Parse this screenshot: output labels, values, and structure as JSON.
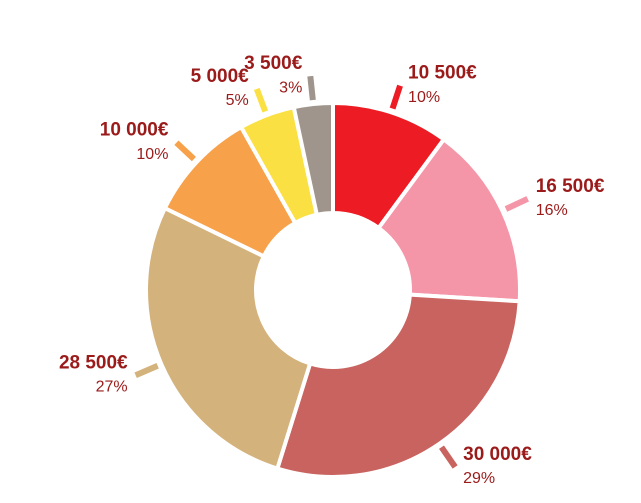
{
  "chart_data": {
    "type": "donut",
    "categories": [
      null,
      null,
      null,
      null,
      null,
      null,
      null
    ],
    "values": [
      10500,
      16500,
      30000,
      28500,
      10000,
      5000,
      3500
    ],
    "value_labels": [
      "10 500€",
      "16 500€",
      "30 000€",
      "28 500€",
      "10 000€",
      "5 000€",
      "3 500€"
    ],
    "percent_labels": [
      "10%",
      "16%",
      "29%",
      "27%",
      "10%",
      "5%",
      "3%"
    ],
    "colors": [
      "#ed1c24",
      "#f495a8",
      "#c9635f",
      "#d4b27c",
      "#f7a14a",
      "#fbe044",
      "#a0958c"
    ]
  }
}
